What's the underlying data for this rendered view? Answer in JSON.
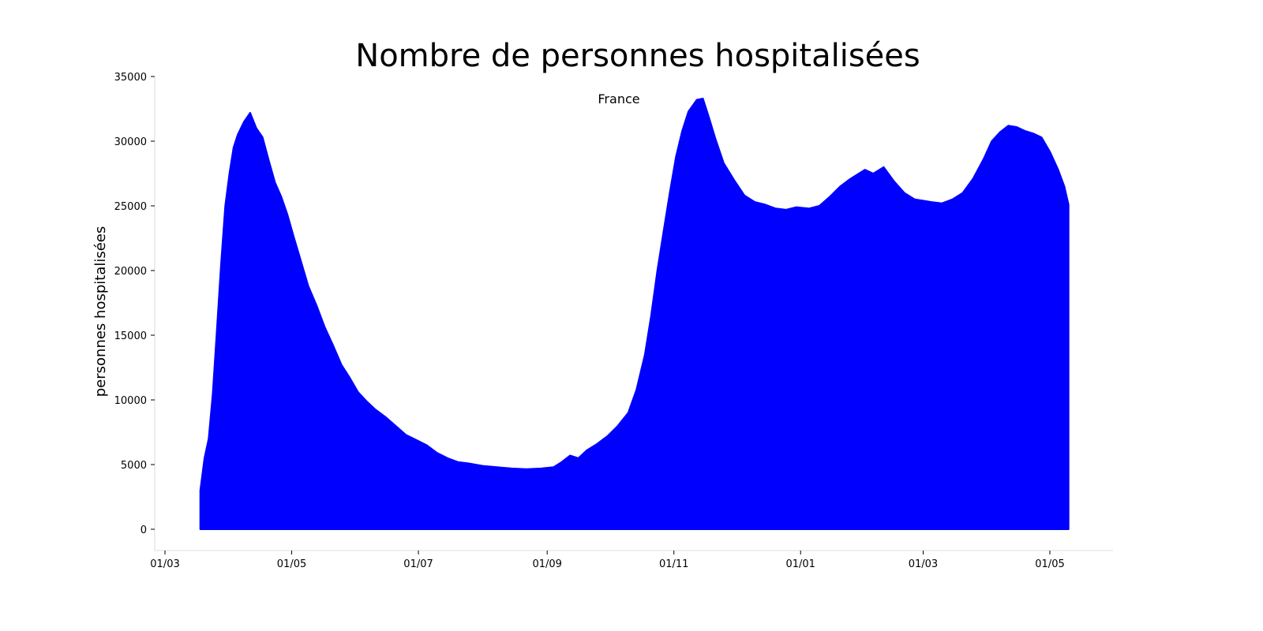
{
  "chart_data": {
    "type": "area",
    "title": "Nombre de personnes hospitalisées",
    "subtitle": "France",
    "xlabel": "",
    "ylabel": "personnes hospitalisées",
    "color": "#0000ff",
    "ylim": [
      0,
      35000
    ],
    "xlim": [
      "2020-02-25",
      "2021-06-01"
    ],
    "y_ticks": [
      0,
      5000,
      10000,
      15000,
      20000,
      25000,
      30000,
      35000
    ],
    "x_ticks": [
      {
        "date": "2020-03-01",
        "label": "01/03"
      },
      {
        "date": "2020-05-01",
        "label": "01/05"
      },
      {
        "date": "2020-07-01",
        "label": "01/07"
      },
      {
        "date": "2020-09-01",
        "label": "01/09"
      },
      {
        "date": "2020-11-01",
        "label": "01/11"
      },
      {
        "date": "2021-01-01",
        "label": "01/01"
      },
      {
        "date": "2021-03-01",
        "label": "01/03"
      },
      {
        "date": "2021-05-01",
        "label": "01/05"
      }
    ],
    "grid": false,
    "legend": "none",
    "series": [
      {
        "x": [
          "2020-03-18",
          "2020-03-20",
          "2020-03-22",
          "2020-03-24",
          "2020-03-26",
          "2020-03-28",
          "2020-03-30",
          "2020-04-01",
          "2020-04-03",
          "2020-04-05",
          "2020-04-08",
          "2020-04-11",
          "2020-04-14",
          "2020-04-17",
          "2020-04-20",
          "2020-04-23",
          "2020-04-26",
          "2020-04-29",
          "2020-05-02",
          "2020-05-05",
          "2020-05-09",
          "2020-05-13",
          "2020-05-17",
          "2020-05-21",
          "2020-05-25",
          "2020-05-29",
          "2020-06-02",
          "2020-06-06",
          "2020-06-10",
          "2020-06-15",
          "2020-06-20",
          "2020-06-25",
          "2020-06-30",
          "2020-07-05",
          "2020-07-10",
          "2020-07-15",
          "2020-07-20",
          "2020-07-25",
          "2020-08-01",
          "2020-08-08",
          "2020-08-15",
          "2020-08-22",
          "2020-08-29",
          "2020-09-04",
          "2020-09-08",
          "2020-09-12",
          "2020-09-16",
          "2020-09-20",
          "2020-09-25",
          "2020-09-30",
          "2020-10-05",
          "2020-10-10",
          "2020-10-14",
          "2020-10-18",
          "2020-10-21",
          "2020-10-24",
          "2020-10-27",
          "2020-10-30",
          "2020-11-02",
          "2020-11-05",
          "2020-11-08",
          "2020-11-12",
          "2020-11-15",
          "2020-11-18",
          "2020-11-21",
          "2020-11-25",
          "2020-11-30",
          "2020-12-05",
          "2020-12-10",
          "2020-12-15",
          "2020-12-20",
          "2020-12-25",
          "2020-12-30",
          "2021-01-05",
          "2021-01-10",
          "2021-01-15",
          "2021-01-20",
          "2021-01-25",
          "2021-02-01",
          "2021-02-05",
          "2021-02-10",
          "2021-02-15",
          "2021-02-20",
          "2021-02-25",
          "2021-03-01",
          "2021-03-05",
          "2021-03-10",
          "2021-03-15",
          "2021-03-20",
          "2021-03-25",
          "2021-03-30",
          "2021-04-03",
          "2021-04-07",
          "2021-04-11",
          "2021-04-15",
          "2021-04-19",
          "2021-04-23",
          "2021-04-27",
          "2021-05-01",
          "2021-05-05",
          "2021-05-08",
          "2021-05-10"
        ],
        "values": [
          3000,
          5500,
          7000,
          10500,
          15500,
          20500,
          25000,
          27500,
          29500,
          30500,
          31500,
          32200,
          31000,
          30300,
          28500,
          26800,
          25700,
          24300,
          22600,
          21000,
          18800,
          17300,
          15600,
          14200,
          12700,
          11700,
          10600,
          9900,
          9300,
          8700,
          8000,
          7300,
          6900,
          6500,
          5900,
          5500,
          5200,
          5100,
          4900,
          4800,
          4700,
          4650,
          4700,
          4800,
          5200,
          5700,
          5500,
          6100,
          6600,
          7200,
          8000,
          9000,
          10800,
          13500,
          16500,
          20000,
          23000,
          26000,
          28800,
          30800,
          32300,
          33200,
          33300,
          31800,
          30200,
          28300,
          27000,
          25800,
          25300,
          25100,
          24800,
          24700,
          24900,
          24800,
          25000,
          25700,
          26500,
          27100,
          27800,
          27500,
          28000,
          26900,
          26000,
          25500,
          25400,
          25300,
          25200,
          25500,
          26000,
          27100,
          28600,
          30000,
          30700,
          31200,
          31100,
          30800,
          30600,
          30300,
          29200,
          27800,
          26500,
          25100
        ]
      }
    ]
  }
}
